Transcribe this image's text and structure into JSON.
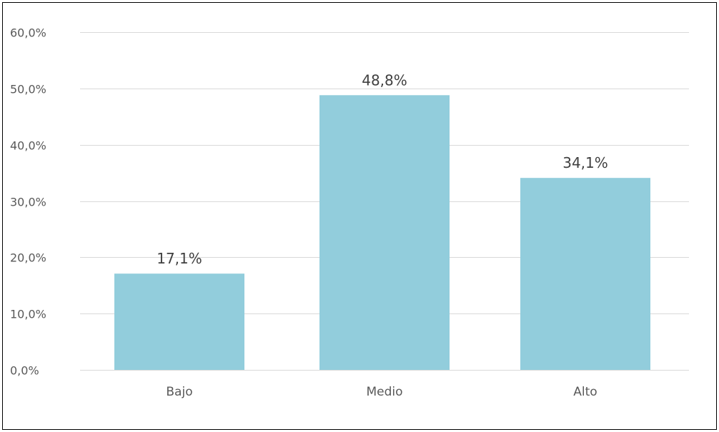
{
  "chart_data": {
    "type": "bar",
    "title": "",
    "xlabel": "",
    "ylabel": "",
    "categories": [
      "Bajo",
      "Medio",
      "Alto"
    ],
    "values": [
      17.1,
      48.8,
      34.1
    ],
    "data_labels": [
      "17,1%",
      "48,8%",
      "34,1%"
    ],
    "ylim": [
      0,
      60
    ],
    "yticks": [
      0,
      10,
      20,
      30,
      40,
      50,
      60
    ],
    "ytick_labels": [
      "0,0%",
      "10,0%",
      "20,0%",
      "30,0%",
      "40,0%",
      "50,0%",
      "60,0%"
    ],
    "grid": true,
    "legend": "none",
    "colors": {
      "bar": "#92CDDC",
      "grid": "#D9D9D9",
      "border": "#000000",
      "text": "#595959"
    }
  }
}
